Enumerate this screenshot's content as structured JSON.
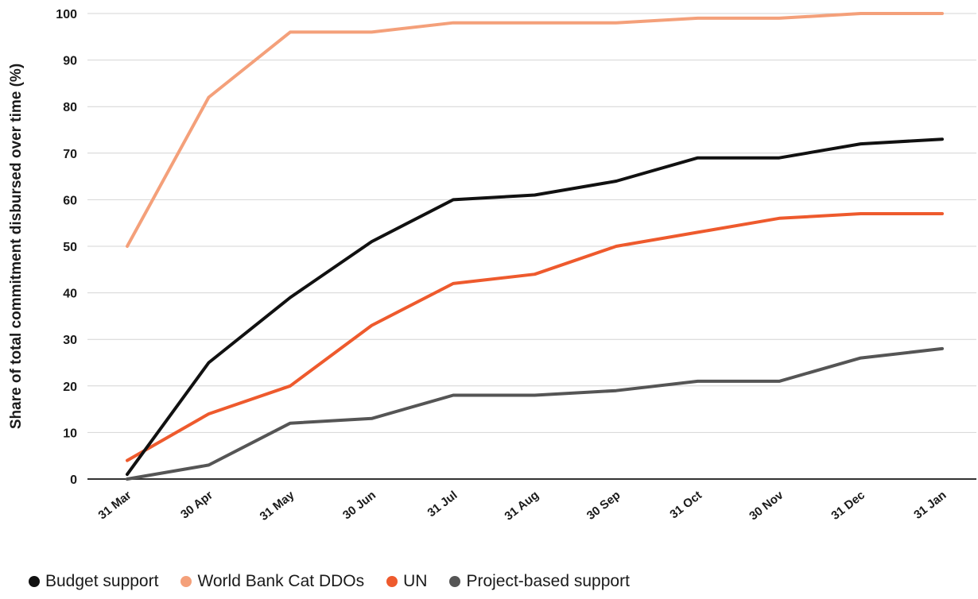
{
  "chart_data": {
    "type": "line",
    "title": "",
    "xlabel": "",
    "ylabel": "Share of total commitment disbursed over time (%)",
    "categories": [
      "31 Mar",
      "30 Apr",
      "31 May",
      "30 Jun",
      "31 Jul",
      "31 Aug",
      "30 Sep",
      "31 Oct",
      "30 Nov",
      "31 Dec",
      "31 Jan"
    ],
    "ylim": [
      0,
      100
    ],
    "yticks": [
      0,
      10,
      20,
      30,
      40,
      50,
      60,
      70,
      80,
      90,
      100
    ],
    "grid": true,
    "legend_position": "bottom",
    "series": [
      {
        "name": "Budget support",
        "color": "#111111",
        "values": [
          1,
          25,
          39,
          51,
          60,
          61,
          64,
          69,
          69,
          72,
          73
        ]
      },
      {
        "name": "World Bank Cat DDOs",
        "color": "#f4a07a",
        "values": [
          50,
          82,
          96,
          96,
          98,
          98,
          98,
          99,
          99,
          100,
          100
        ]
      },
      {
        "name": "UN",
        "color": "#ee5a2d",
        "values": [
          4,
          14,
          20,
          33,
          42,
          44,
          50,
          53,
          56,
          57,
          57
        ]
      },
      {
        "name": "Project-based support",
        "color": "#555555",
        "values": [
          0,
          3,
          12,
          13,
          18,
          18,
          19,
          21,
          21,
          26,
          28
        ]
      }
    ]
  }
}
